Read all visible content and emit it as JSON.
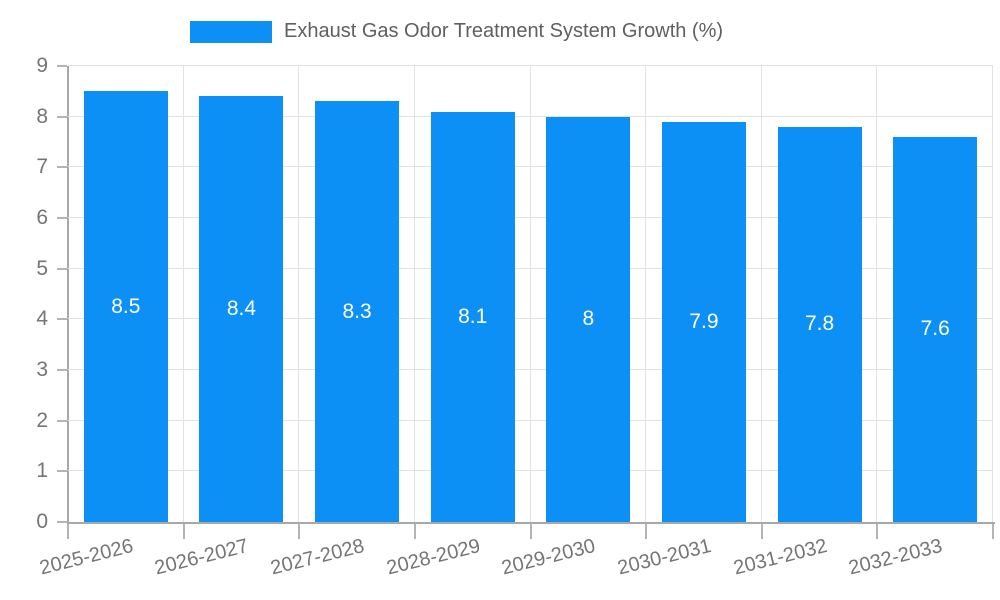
{
  "chart_data": {
    "type": "bar",
    "title": "Exhaust Gas Odor Treatment System Growth (%)",
    "categories": [
      "2025-2026",
      "2026-2027",
      "2027-2028",
      "2028-2029",
      "2029-2030",
      "2030-2031",
      "2031-2032",
      "2032-2033"
    ],
    "values": [
      8.5,
      8.4,
      8.3,
      8.1,
      8,
      7.9,
      7.8,
      7.6
    ],
    "value_labels": [
      "8.5",
      "8.4",
      "8.3",
      "8.1",
      "8",
      "7.9",
      "7.8",
      "7.6"
    ],
    "xlabel": "",
    "ylabel": "",
    "ylim": [
      0,
      9
    ],
    "y_tick_labels": [
      "0",
      "1",
      "2",
      "3",
      "4",
      "5",
      "6",
      "7",
      "8",
      "9"
    ],
    "grid": true,
    "legend_position": "top",
    "colors": {
      "bar": "#0d90f5",
      "grid": "#e2e2e2",
      "axis": "#a8a8a8",
      "tick": "#b4b4b4",
      "tick_label": "#757575",
      "title_text": "#5f5f5f",
      "data_label": "#ffffff",
      "background": "#ffffff"
    }
  }
}
